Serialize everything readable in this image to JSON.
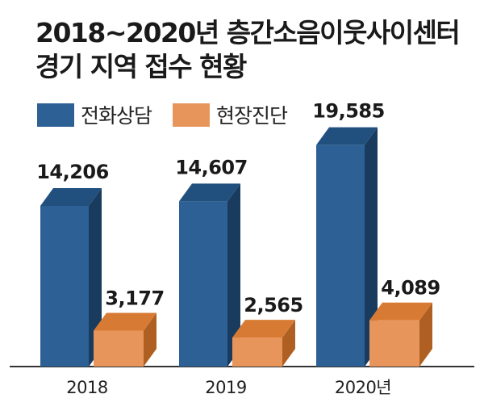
{
  "title_lines": [
    "2018~2020년 층간소음이웃사이센터",
    "경기 지역 접수 현황"
  ],
  "colors": {
    "series1_front": "#2d6196",
    "series1_side": "#193b5e",
    "series1_top": "#21507e",
    "series2_front": "#e8955c",
    "series2_side": "#b05f22",
    "series2_top": "#d77b34",
    "baseline": "#333333"
  },
  "chart_data": {
    "type": "bar",
    "categories": [
      "2018",
      "2019",
      "2020년"
    ],
    "series": [
      {
        "name": "전화상담",
        "values": [
          14206,
          14607,
          19585
        ],
        "labels": [
          "14,206",
          "14,607",
          "19,585"
        ]
      },
      {
        "name": "현장진단",
        "values": [
          3177,
          2565,
          4089
        ],
        "labels": [
          "3,177",
          "2,565",
          "4,089"
        ]
      }
    ],
    "legend_position": "top-left",
    "grid": false
  }
}
